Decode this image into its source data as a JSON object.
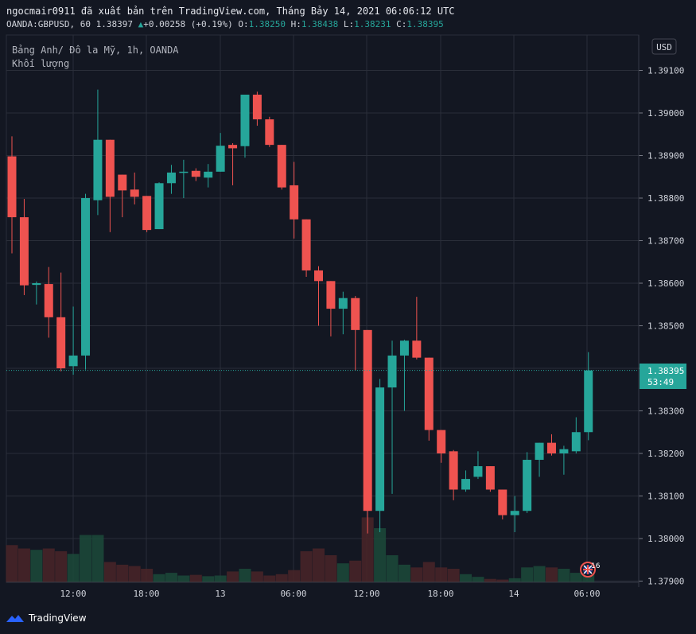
{
  "header": {
    "line1": "ngocmair0911 đã xuất bản trên TradingView.com, Tháng Bảy 14, 2021 06:06:12 UTC",
    "symbol": "OANDA:GBPUSD, 60",
    "last": "1.38397",
    "change": "+0.00258 (+0.19%)",
    "o_label": "O:",
    "o_value": "1.38250",
    "h_label": "H:",
    "h_value": "1.38438",
    "l_label": "L:",
    "l_value": "1.38231",
    "c_label": "C:",
    "c_value": "1.38395"
  },
  "legend": {
    "title": "Bảng Anh/ Đô la Mỹ, 1h, OANDA",
    "volume": "Khối lượng"
  },
  "currency_button": "USD",
  "price_tag": {
    "price": "1.38395",
    "countdown": "53:49"
  },
  "event_badge": "16",
  "footer": {
    "brand": "TradingView"
  },
  "colors": {
    "up": "#26a69a",
    "down": "#ef5350",
    "bg": "#131722",
    "grid": "#2a2e39"
  },
  "chart_data": {
    "type": "candlestick",
    "y_ticks": [
      "1.39100",
      "1.39000",
      "1.38900",
      "1.38800",
      "1.38700",
      "1.38600",
      "1.38500",
      "1.38400",
      "1.38300",
      "1.38200",
      "1.38100",
      "1.38000",
      "1.37900"
    ],
    "x_ticks": [
      "12:00",
      "18:00",
      "13",
      "06:00",
      "12:00",
      "18:00",
      "14",
      "06:00"
    ],
    "ylim": [
      1.379,
      1.3916
    ],
    "candles": [
      {
        "o": 1.38898,
        "h": 1.38945,
        "l": 1.3867,
        "c": 1.38755
      },
      {
        "o": 1.38755,
        "h": 1.38798,
        "l": 1.38572,
        "c": 1.38595
      },
      {
        "o": 1.38596,
        "h": 1.38604,
        "l": 1.3855,
        "c": 1.386
      },
      {
        "o": 1.38598,
        "h": 1.38638,
        "l": 1.38472,
        "c": 1.3852
      },
      {
        "o": 1.3852,
        "h": 1.38625,
        "l": 1.38393,
        "c": 1.384
      },
      {
        "o": 1.38405,
        "h": 1.38545,
        "l": 1.38385,
        "c": 1.3843
      },
      {
        "o": 1.3843,
        "h": 1.3881,
        "l": 1.38397,
        "c": 1.388
      },
      {
        "o": 1.38795,
        "h": 1.39055,
        "l": 1.3876,
        "c": 1.38937
      },
      {
        "o": 1.38937,
        "h": 1.38937,
        "l": 1.3872,
        "c": 1.38803
      },
      {
        "o": 1.38855,
        "h": 1.38855,
        "l": 1.38755,
        "c": 1.38818
      },
      {
        "o": 1.3882,
        "h": 1.3886,
        "l": 1.38785,
        "c": 1.38803
      },
      {
        "o": 1.38805,
        "h": 1.38805,
        "l": 1.3872,
        "c": 1.38725
      },
      {
        "o": 1.38727,
        "h": 1.38837,
        "l": 1.38727,
        "c": 1.38835
      },
      {
        "o": 1.38835,
        "h": 1.38878,
        "l": 1.3881,
        "c": 1.3886
      },
      {
        "o": 1.38862,
        "h": 1.3889,
        "l": 1.388,
        "c": 1.38862
      },
      {
        "o": 1.38864,
        "h": 1.3887,
        "l": 1.3884,
        "c": 1.3885
      },
      {
        "o": 1.38848,
        "h": 1.3888,
        "l": 1.38825,
        "c": 1.38862
      },
      {
        "o": 1.38862,
        "h": 1.38953,
        "l": 1.38862,
        "c": 1.38923
      },
      {
        "o": 1.38925,
        "h": 1.38929,
        "l": 1.3883,
        "c": 1.38917
      },
      {
        "o": 1.38922,
        "h": 1.39043,
        "l": 1.38895,
        "c": 1.39043
      },
      {
        "o": 1.39043,
        "h": 1.3905,
        "l": 1.3897,
        "c": 1.38985
      },
      {
        "o": 1.38985,
        "h": 1.38991,
        "l": 1.3892,
        "c": 1.38925
      },
      {
        "o": 1.38925,
        "h": 1.38925,
        "l": 1.3882,
        "c": 1.38825
      },
      {
        "o": 1.3883,
        "h": 1.38885,
        "l": 1.38705,
        "c": 1.3875
      },
      {
        "o": 1.3875,
        "h": 1.3875,
        "l": 1.38615,
        "c": 1.3863
      },
      {
        "o": 1.3863,
        "h": 1.3864,
        "l": 1.385,
        "c": 1.38605
      },
      {
        "o": 1.38605,
        "h": 1.38605,
        "l": 1.38475,
        "c": 1.3854
      },
      {
        "o": 1.3854,
        "h": 1.3858,
        "l": 1.3848,
        "c": 1.38565
      },
      {
        "o": 1.38565,
        "h": 1.3857,
        "l": 1.38395,
        "c": 1.3849
      },
      {
        "o": 1.3849,
        "h": 1.3849,
        "l": 1.38012,
        "c": 1.38065
      },
      {
        "o": 1.38065,
        "h": 1.38375,
        "l": 1.38015,
        "c": 1.38355
      },
      {
        "o": 1.38355,
        "h": 1.38465,
        "l": 1.38105,
        "c": 1.3843
      },
      {
        "o": 1.3843,
        "h": 1.38467,
        "l": 1.383,
        "c": 1.38465
      },
      {
        "o": 1.38465,
        "h": 1.38568,
        "l": 1.38421,
        "c": 1.38425
      },
      {
        "o": 1.38425,
        "h": 1.38425,
        "l": 1.3823,
        "c": 1.38255
      },
      {
        "o": 1.38255,
        "h": 1.38255,
        "l": 1.38178,
        "c": 1.382
      },
      {
        "o": 1.38205,
        "h": 1.38208,
        "l": 1.3809,
        "c": 1.38115
      },
      {
        "o": 1.38115,
        "h": 1.3816,
        "l": 1.3811,
        "c": 1.3814
      },
      {
        "o": 1.38145,
        "h": 1.38205,
        "l": 1.3814,
        "c": 1.3817
      },
      {
        "o": 1.3817,
        "h": 1.3817,
        "l": 1.3811,
        "c": 1.38115
      },
      {
        "o": 1.38115,
        "h": 1.38115,
        "l": 1.38045,
        "c": 1.38055
      },
      {
        "o": 1.38055,
        "h": 1.381,
        "l": 1.38015,
        "c": 1.38065
      },
      {
        "o": 1.38065,
        "h": 1.38203,
        "l": 1.3806,
        "c": 1.38185
      },
      {
        "o": 1.38185,
        "h": 1.38225,
        "l": 1.38145,
        "c": 1.38225
      },
      {
        "o": 1.38225,
        "h": 1.38245,
        "l": 1.38195,
        "c": 1.382
      },
      {
        "o": 1.382,
        "h": 1.38218,
        "l": 1.3815,
        "c": 1.3821
      },
      {
        "o": 1.38205,
        "h": 1.38285,
        "l": 1.382,
        "c": 1.3825
      },
      {
        "o": 1.3825,
        "h": 1.38438,
        "l": 1.38231,
        "c": 1.38395
      }
    ],
    "volume": [
      55,
      50,
      48,
      50,
      46,
      42,
      70,
      70,
      30,
      26,
      24,
      20,
      12,
      14,
      10,
      11,
      9,
      10,
      16,
      20,
      16,
      10,
      12,
      18,
      46,
      50,
      40,
      28,
      32,
      96,
      80,
      40,
      26,
      22,
      30,
      22,
      20,
      12,
      8,
      5,
      4,
      6,
      22,
      24,
      22,
      20,
      14,
      16
    ]
  }
}
